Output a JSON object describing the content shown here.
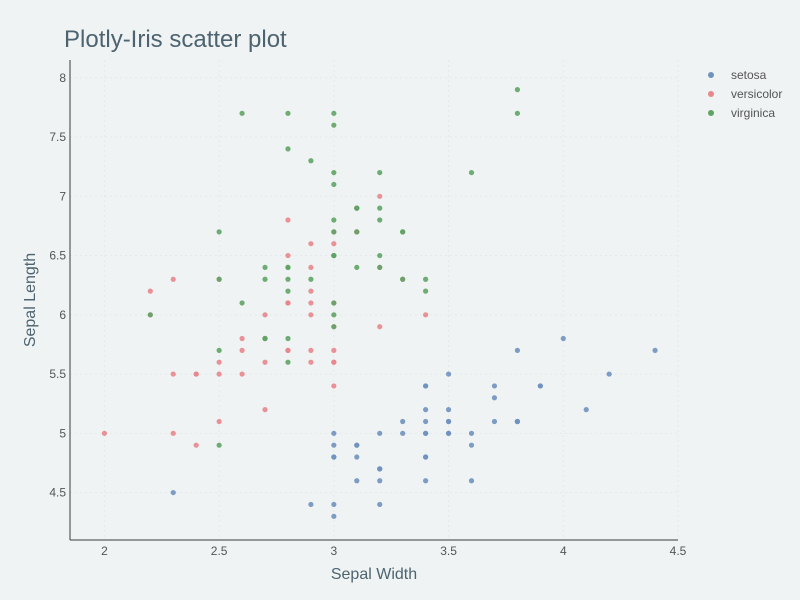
{
  "chart_data": {
    "type": "scatter",
    "title": "Plotly-Iris scatter plot",
    "xlabel": "Sepal Width",
    "ylabel": "Sepal Length",
    "xlim": [
      1.85,
      4.5
    ],
    "ylim": [
      4.1,
      8.15
    ],
    "xticks": [
      2,
      2.5,
      3,
      3.5,
      4,
      4.5
    ],
    "yticks": [
      4.5,
      5,
      5.5,
      6,
      6.5,
      7,
      7.5,
      8
    ],
    "grid": true,
    "legend_position": "top-right",
    "series": [
      {
        "name": "setosa",
        "color": "#6f92bf",
        "points": [
          [
            3.5,
            5.1
          ],
          [
            3.0,
            4.9
          ],
          [
            3.2,
            4.7
          ],
          [
            3.1,
            4.6
          ],
          [
            3.6,
            5.0
          ],
          [
            3.9,
            5.4
          ],
          [
            3.4,
            4.6
          ],
          [
            3.4,
            5.0
          ],
          [
            2.9,
            4.4
          ],
          [
            3.1,
            4.9
          ],
          [
            3.7,
            5.4
          ],
          [
            3.4,
            4.8
          ],
          [
            3.0,
            4.8
          ],
          [
            3.0,
            4.3
          ],
          [
            4.0,
            5.8
          ],
          [
            4.4,
            5.7
          ],
          [
            3.9,
            5.4
          ],
          [
            3.5,
            5.1
          ],
          [
            3.8,
            5.7
          ],
          [
            3.8,
            5.1
          ],
          [
            3.4,
            5.4
          ],
          [
            3.7,
            5.1
          ],
          [
            3.6,
            4.6
          ],
          [
            3.3,
            5.1
          ],
          [
            3.4,
            4.8
          ],
          [
            3.0,
            5.0
          ],
          [
            3.4,
            5.0
          ],
          [
            3.5,
            5.2
          ],
          [
            3.4,
            5.2
          ],
          [
            3.2,
            4.7
          ],
          [
            3.1,
            4.8
          ],
          [
            3.4,
            5.4
          ],
          [
            4.1,
            5.2
          ],
          [
            4.2,
            5.5
          ],
          [
            3.1,
            4.9
          ],
          [
            3.2,
            5.0
          ],
          [
            3.5,
            5.5
          ],
          [
            3.6,
            4.9
          ],
          [
            3.0,
            4.4
          ],
          [
            3.4,
            5.1
          ],
          [
            3.5,
            5.0
          ],
          [
            2.3,
            4.5
          ],
          [
            3.2,
            4.4
          ],
          [
            3.5,
            5.0
          ],
          [
            3.8,
            5.1
          ],
          [
            3.0,
            4.8
          ],
          [
            3.8,
            5.1
          ],
          [
            3.2,
            4.6
          ],
          [
            3.7,
            5.3
          ],
          [
            3.3,
            5.0
          ]
        ]
      },
      {
        "name": "versicolor",
        "color": "#e8868c",
        "points": [
          [
            3.2,
            7.0
          ],
          [
            3.2,
            6.4
          ],
          [
            3.1,
            6.9
          ],
          [
            2.3,
            5.5
          ],
          [
            2.8,
            6.5
          ],
          [
            2.8,
            5.7
          ],
          [
            3.3,
            6.3
          ],
          [
            2.4,
            4.9
          ],
          [
            2.9,
            6.6
          ],
          [
            2.7,
            5.2
          ],
          [
            2.0,
            5.0
          ],
          [
            3.0,
            5.9
          ],
          [
            2.2,
            6.0
          ],
          [
            2.9,
            6.1
          ],
          [
            2.9,
            5.6
          ],
          [
            3.1,
            6.7
          ],
          [
            3.0,
            5.6
          ],
          [
            2.7,
            5.8
          ],
          [
            2.2,
            6.2
          ],
          [
            2.5,
            5.6
          ],
          [
            3.2,
            5.9
          ],
          [
            2.8,
            6.1
          ],
          [
            2.5,
            6.3
          ],
          [
            2.8,
            6.1
          ],
          [
            2.9,
            6.4
          ],
          [
            3.0,
            6.6
          ],
          [
            2.8,
            6.8
          ],
          [
            3.0,
            6.7
          ],
          [
            2.9,
            6.0
          ],
          [
            2.6,
            5.7
          ],
          [
            2.4,
            5.5
          ],
          [
            2.4,
            5.5
          ],
          [
            2.7,
            5.8
          ],
          [
            2.7,
            6.0
          ],
          [
            3.0,
            5.4
          ],
          [
            3.4,
            6.0
          ],
          [
            3.1,
            6.7
          ],
          [
            2.3,
            6.3
          ],
          [
            3.0,
            5.6
          ],
          [
            2.5,
            5.5
          ],
          [
            2.6,
            5.5
          ],
          [
            3.0,
            6.1
          ],
          [
            2.6,
            5.8
          ],
          [
            2.3,
            5.0
          ],
          [
            2.7,
            5.6
          ],
          [
            3.0,
            5.7
          ],
          [
            2.9,
            5.7
          ],
          [
            2.9,
            6.2
          ],
          [
            2.5,
            5.1
          ],
          [
            2.8,
            5.7
          ]
        ]
      },
      {
        "name": "virginica",
        "color": "#5ea464",
        "points": [
          [
            3.3,
            6.3
          ],
          [
            2.7,
            5.8
          ],
          [
            3.0,
            7.1
          ],
          [
            2.9,
            6.3
          ],
          [
            3.0,
            6.5
          ],
          [
            3.0,
            7.6
          ],
          [
            2.5,
            4.9
          ],
          [
            2.9,
            7.3
          ],
          [
            2.5,
            6.7
          ],
          [
            3.6,
            7.2
          ],
          [
            3.2,
            6.5
          ],
          [
            2.7,
            6.4
          ],
          [
            3.0,
            6.8
          ],
          [
            2.5,
            5.7
          ],
          [
            2.8,
            5.8
          ],
          [
            3.2,
            6.4
          ],
          [
            3.0,
            6.5
          ],
          [
            3.8,
            7.7
          ],
          [
            2.6,
            7.7
          ],
          [
            2.2,
            6.0
          ],
          [
            3.2,
            6.9
          ],
          [
            2.8,
            5.6
          ],
          [
            2.8,
            7.7
          ],
          [
            2.7,
            6.3
          ],
          [
            3.3,
            6.7
          ],
          [
            3.2,
            7.2
          ],
          [
            2.8,
            6.2
          ],
          [
            3.0,
            6.1
          ],
          [
            2.8,
            6.4
          ],
          [
            3.0,
            7.2
          ],
          [
            2.8,
            7.4
          ],
          [
            3.8,
            7.9
          ],
          [
            2.8,
            6.4
          ],
          [
            2.8,
            6.3
          ],
          [
            2.6,
            6.1
          ],
          [
            3.0,
            7.7
          ],
          [
            3.4,
            6.3
          ],
          [
            3.1,
            6.4
          ],
          [
            3.0,
            6.0
          ],
          [
            3.1,
            6.9
          ],
          [
            3.1,
            6.7
          ],
          [
            3.1,
            6.9
          ],
          [
            2.7,
            5.8
          ],
          [
            3.2,
            6.8
          ],
          [
            3.3,
            6.7
          ],
          [
            3.0,
            6.7
          ],
          [
            2.5,
            6.3
          ],
          [
            3.0,
            6.5
          ],
          [
            3.4,
            6.2
          ],
          [
            3.0,
            5.9
          ]
        ]
      }
    ]
  }
}
